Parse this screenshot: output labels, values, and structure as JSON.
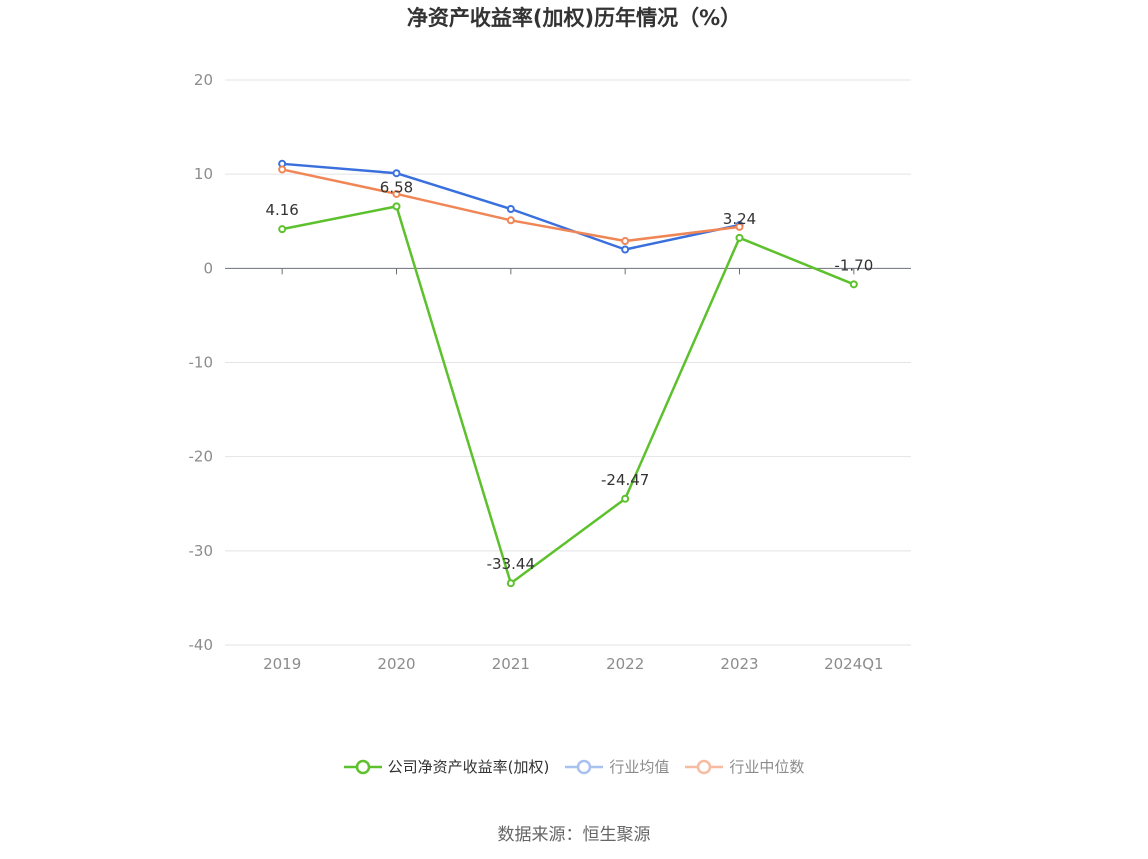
{
  "chart_data": {
    "type": "line",
    "title": "净资产收益率(加权)历年情况（%）",
    "categories": [
      "2019",
      "2020",
      "2021",
      "2022",
      "2023",
      "2024Q1"
    ],
    "ylim": [
      -40,
      20
    ],
    "yticks": [
      20,
      10,
      0,
      -10,
      -20,
      -30,
      -40
    ],
    "grid": true,
    "legend_position": "bottom",
    "series": [
      {
        "name": "公司净资产收益率(加权)",
        "color": "#5cc12c",
        "values": [
          4.16,
          6.58,
          -33.44,
          -24.47,
          3.24,
          -1.7
        ],
        "labels": [
          "4.16",
          "6.58",
          "-33.44",
          "-24.47",
          "3.24",
          "-1.70"
        ]
      },
      {
        "name": "行业均值",
        "color": "#3a70dd",
        "values": [
          11.1,
          10.1,
          6.3,
          2.0,
          4.6,
          null
        ]
      },
      {
        "name": "行业中位数",
        "color": "#f08656",
        "values": [
          10.5,
          7.9,
          5.1,
          2.9,
          4.4,
          null
        ]
      }
    ]
  },
  "legend": {
    "items": [
      {
        "label": "公司净资产收益率(加权)",
        "color": "#5cc12c",
        "muted_color": "#5cc12c"
      },
      {
        "label": "行业均值",
        "color": "#3a70dd",
        "muted_color": "#a8c1ee"
      },
      {
        "label": "行业中位数",
        "color": "#f08656",
        "muted_color": "#f6bba0"
      }
    ]
  },
  "source": "数据来源：恒生聚源"
}
